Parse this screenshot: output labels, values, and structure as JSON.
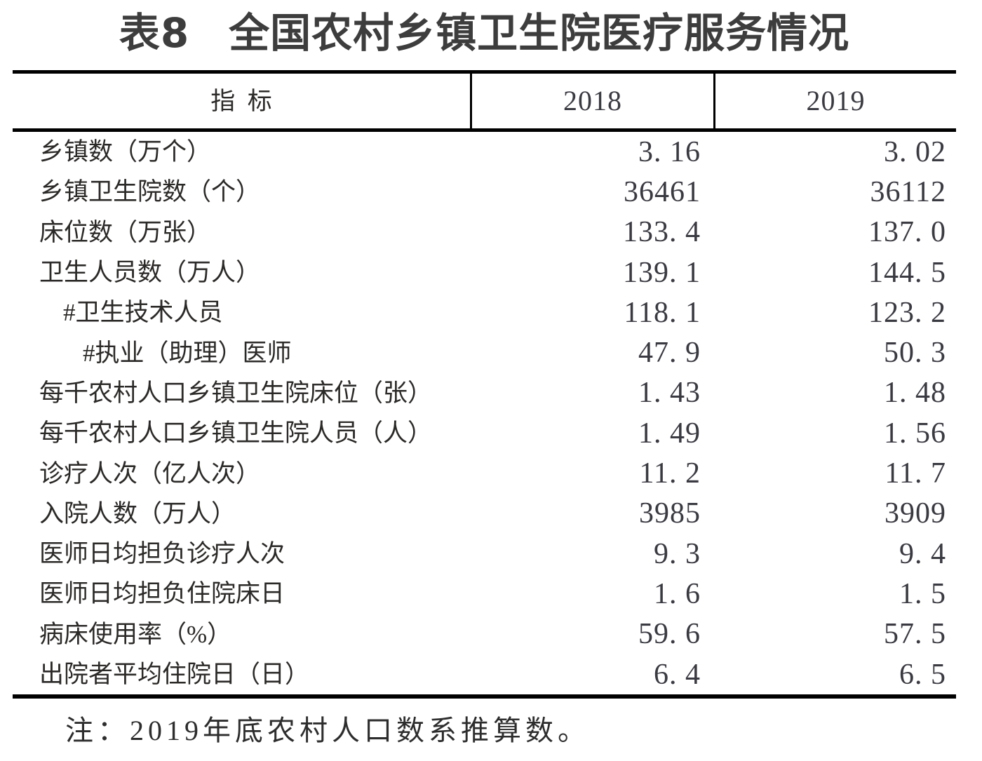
{
  "title": {
    "prefix": "表8",
    "main": "全国农村乡镇卫生院医疗服务情况"
  },
  "table": {
    "header": {
      "indicator": "指 标",
      "y2018": "2018",
      "y2019": "2019"
    },
    "rows": [
      {
        "label": "乡镇数（万个）",
        "indent": 0,
        "v2018": "3. 16",
        "v2019": "3. 02"
      },
      {
        "label": "乡镇卫生院数（个）",
        "indent": 0,
        "v2018": "36461",
        "v2019": "36112"
      },
      {
        "label": "床位数（万张）",
        "indent": 0,
        "v2018": "133. 4",
        "v2019": "137. 0"
      },
      {
        "label": "卫生人员数（万人）",
        "indent": 0,
        "v2018": "139. 1",
        "v2019": "144. 5"
      },
      {
        "label": "#卫生技术人员",
        "indent": 1,
        "v2018": "118. 1",
        "v2019": "123. 2"
      },
      {
        "label": "#执业（助理）医师",
        "indent": 2,
        "v2018": "47. 9",
        "v2019": "50. 3"
      },
      {
        "label": "每千农村人口乡镇卫生院床位（张）",
        "indent": 0,
        "v2018": "1. 43",
        "v2019": "1. 48"
      },
      {
        "label": "每千农村人口乡镇卫生院人员（人）",
        "indent": 0,
        "v2018": "1. 49",
        "v2019": "1. 56"
      },
      {
        "label": "诊疗人次（亿人次）",
        "indent": 0,
        "v2018": "11. 2",
        "v2019": "11. 7"
      },
      {
        "label": "入院人数（万人）",
        "indent": 0,
        "v2018": "3985",
        "v2019": "3909"
      },
      {
        "label": "医师日均担负诊疗人次",
        "indent": 0,
        "v2018": "9. 3",
        "v2019": "9. 4"
      },
      {
        "label": "医师日均担负住院床日",
        "indent": 0,
        "v2018": "1. 6",
        "v2019": "1. 5"
      },
      {
        "label": "病床使用率（%）",
        "indent": 0,
        "v2018": "59. 6",
        "v2019": "57. 5"
      },
      {
        "label": "出院者平均住院日（日）",
        "indent": 0,
        "v2018": "6. 4",
        "v2019": "6. 5"
      }
    ]
  },
  "note": "注：2019年底农村人口数系推算数。",
  "colors": {
    "border": "#000000",
    "title_text": "#3d3d3d",
    "label_text": "#2c2a28",
    "number_text": "#3a3a42",
    "background": "#ffffff"
  }
}
